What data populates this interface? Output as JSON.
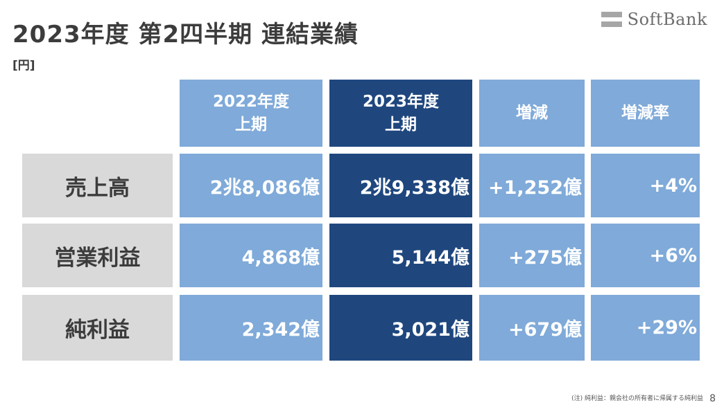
{
  "slide": {
    "title": "2023年度 第2四半期 連結業績",
    "unit": "[円]",
    "logo_text": "SoftBank",
    "footnote": "(注) 純利益：親会社の所有者に帰属する純利益",
    "page_number": "8"
  },
  "table": {
    "headers": [
      {
        "line1": "2022年度",
        "line2": "上期"
      },
      {
        "line1": "2023年度",
        "line2": "上期"
      },
      {
        "line1": "増減",
        "line2": ""
      },
      {
        "line1": "増減率",
        "line2": ""
      }
    ],
    "rows": [
      {
        "label": "売上高",
        "prev": "2兆8,086億",
        "curr": "2兆9,338億",
        "change": "+1,252億",
        "rate": "+4%"
      },
      {
        "label": "営業利益",
        "prev": "4,868億",
        "curr": "5,144億",
        "change": "+275億",
        "rate": "+6%"
      },
      {
        "label": "純利益",
        "prev": "2,342億",
        "curr": "3,021億",
        "change": "+679億",
        "rate": "+29%"
      }
    ]
  },
  "colors": {
    "light_blue": "#7faad9",
    "dark_blue": "#1f477e",
    "label_gray": "#d9d9d9",
    "text_dark": "#3c3c3c"
  }
}
